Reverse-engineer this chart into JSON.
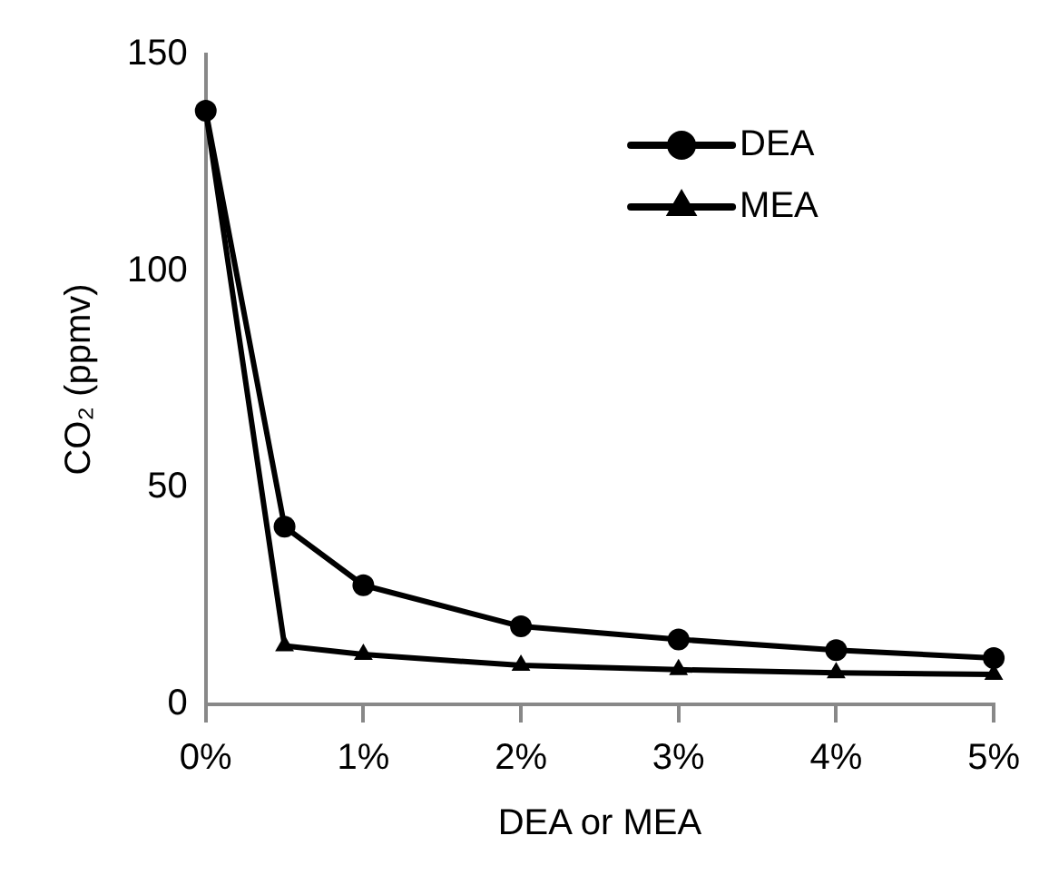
{
  "chart_data": {
    "type": "line",
    "xlabel": "DEA or MEA",
    "ylabel": "CO₂ (ppmv)",
    "x": [
      0,
      0.5,
      1,
      2,
      3,
      4,
      5
    ],
    "series": [
      {
        "name": "DEA",
        "color": "#000000",
        "marker": "circle",
        "values": [
          137,
          41,
          27.5,
          18,
          15,
          12.5,
          10.7
        ]
      },
      {
        "name": "MEA",
        "color": "#000000",
        "marker": "triangle",
        "values": [
          137,
          13.5,
          11.5,
          9,
          8,
          7.3,
          6.9
        ]
      }
    ],
    "xlim": [
      0,
      5
    ],
    "xticks": [
      {
        "value": 0,
        "label": "0%"
      },
      {
        "value": 1,
        "label": "1%"
      },
      {
        "value": 2,
        "label": "2%"
      },
      {
        "value": 3,
        "label": "3%"
      },
      {
        "value": 4,
        "label": "4%"
      },
      {
        "value": 5,
        "label": "5%"
      }
    ],
    "ylim": [
      0,
      150
    ],
    "yticks": [
      0,
      50,
      100,
      150
    ],
    "grid": false,
    "legend": "top right",
    "line_style": "solid"
  }
}
